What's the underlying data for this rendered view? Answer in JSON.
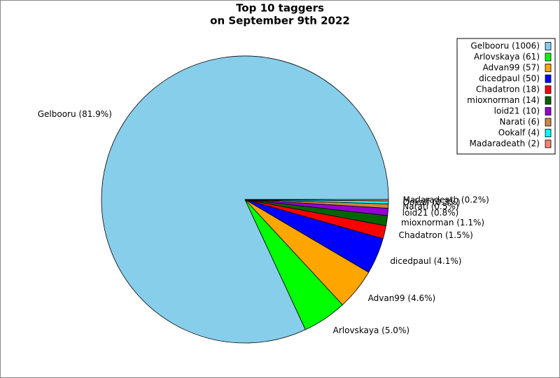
{
  "chart_data": {
    "type": "pie",
    "title": [
      "Top 10 taggers",
      "on September 9th 2022"
    ],
    "categories": [
      "Gelbooru",
      "Arlovskaya",
      "Advan99",
      "dicedpaul",
      "Chadatron",
      "mioxnorman",
      "loid21",
      "Narati",
      "Ookalf",
      "Madaradeath"
    ],
    "values": [
      1006,
      61,
      57,
      50,
      18,
      14,
      10,
      6,
      4,
      2
    ],
    "colors": [
      "#87ceeb",
      "#00ff00",
      "#ffa500",
      "#0000ff",
      "#ff0000",
      "#006400",
      "#9400d3",
      "#cd853f",
      "#00ffff",
      "#fa8072"
    ],
    "slice_labels": [
      "Gelbooru (81.9%)",
      "Arlovskaya (5.0%)",
      "Advan99 (4.6%)",
      "dicedpaul (4.1%)",
      "Chadatron (1.5%)",
      "mioxnorman (1.1%)",
      "loid21 (0.8%)",
      "Narati (0.5%)",
      "Ookalf (0.3%)",
      "Madaradeath (0.2%)"
    ],
    "legend_labels": [
      "Gelbooru (1006)",
      "Arlovskaya (61)",
      "Advan99 (57)",
      "dicedpaul (50)",
      "Chadatron (18)",
      "mioxnorman (14)",
      "loid21 (10)",
      "Narati (6)",
      "Ookalf (4)",
      "Madaradeath (2)"
    ],
    "legend": "upper right"
  }
}
